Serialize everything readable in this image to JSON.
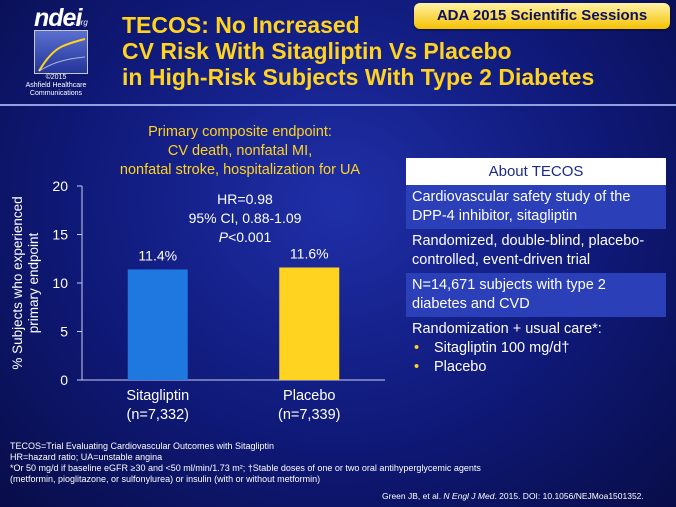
{
  "logo": {
    "brand": "ndei",
    "domain": ".org",
    "copyright": "©2015\nAshfield Healthcare\nCommunications"
  },
  "badge": "ADA 2015 Scientific Sessions",
  "title": {
    "line1": "TECOS: No Increased",
    "line2": "CV Risk With Sitagliptin Vs Placebo",
    "line3": "in High-Risk Subjects With Type 2 Diabetes"
  },
  "chart_title": {
    "line1": "Primary composite endpoint:",
    "line2": "CV death, nonfatal MI,",
    "line3": "nonfatal stroke, hospitalization for UA"
  },
  "hr_box": {
    "line1": "HR=0.98",
    "line2": "95% CI, 0.88-1.09",
    "p_label": "P",
    "p_value": "<0.001"
  },
  "chart_data": {
    "type": "bar",
    "categories": [
      "Sitagliptin",
      "Placebo"
    ],
    "category_sublabels": [
      "(n=7,332)",
      "(n=7,339)"
    ],
    "values": [
      11.4,
      11.6
    ],
    "value_labels": [
      "11.4%",
      "11.6%"
    ],
    "bar_colors": [
      "#1f77e0",
      "#ffd320"
    ],
    "ylabel_line1": "% Subjects who experienced",
    "ylabel_line2": "primary endpoint",
    "ylim": [
      0,
      20
    ],
    "yticks": [
      0,
      5,
      10,
      15,
      20
    ],
    "ytick_labels": [
      "0",
      "5",
      "10",
      "15",
      "20"
    ],
    "grid": false
  },
  "about": {
    "heading": "About TECOS",
    "row1": "Cardiovascular safety study of the DPP-4 inhibitor, sitagliptin",
    "row2": "Randomized, double-blind, placebo-controlled, event-driven trial",
    "row3": "N=14,671 subjects with type 2 diabetes and CVD",
    "row4": "Randomization + usual care*:",
    "bullets": [
      "Sitagliptin 100 mg/d†",
      "Placebo"
    ]
  },
  "footnotes": {
    "line1": "TECOS=Trial Evaluating Cardiovascular Outcomes with Sitagliptin",
    "line2": "HR=hazard ratio; UA=unstable angina",
    "line3": "*Or 50 mg/d if baseline eGFR ≥30 and <50 ml/min/1.73 m²; †Stable doses of one or two oral antihyperglycemic agents",
    "line4": "(metformin, pioglitazone, or sulfonylurea) or insulin (with or without metformin)"
  },
  "citation": {
    "authors": "Green JB, et al. ",
    "journal": "N Engl J Med",
    "rest": ". 2015. DOI: 10.1056/NEJMoa1501352."
  }
}
